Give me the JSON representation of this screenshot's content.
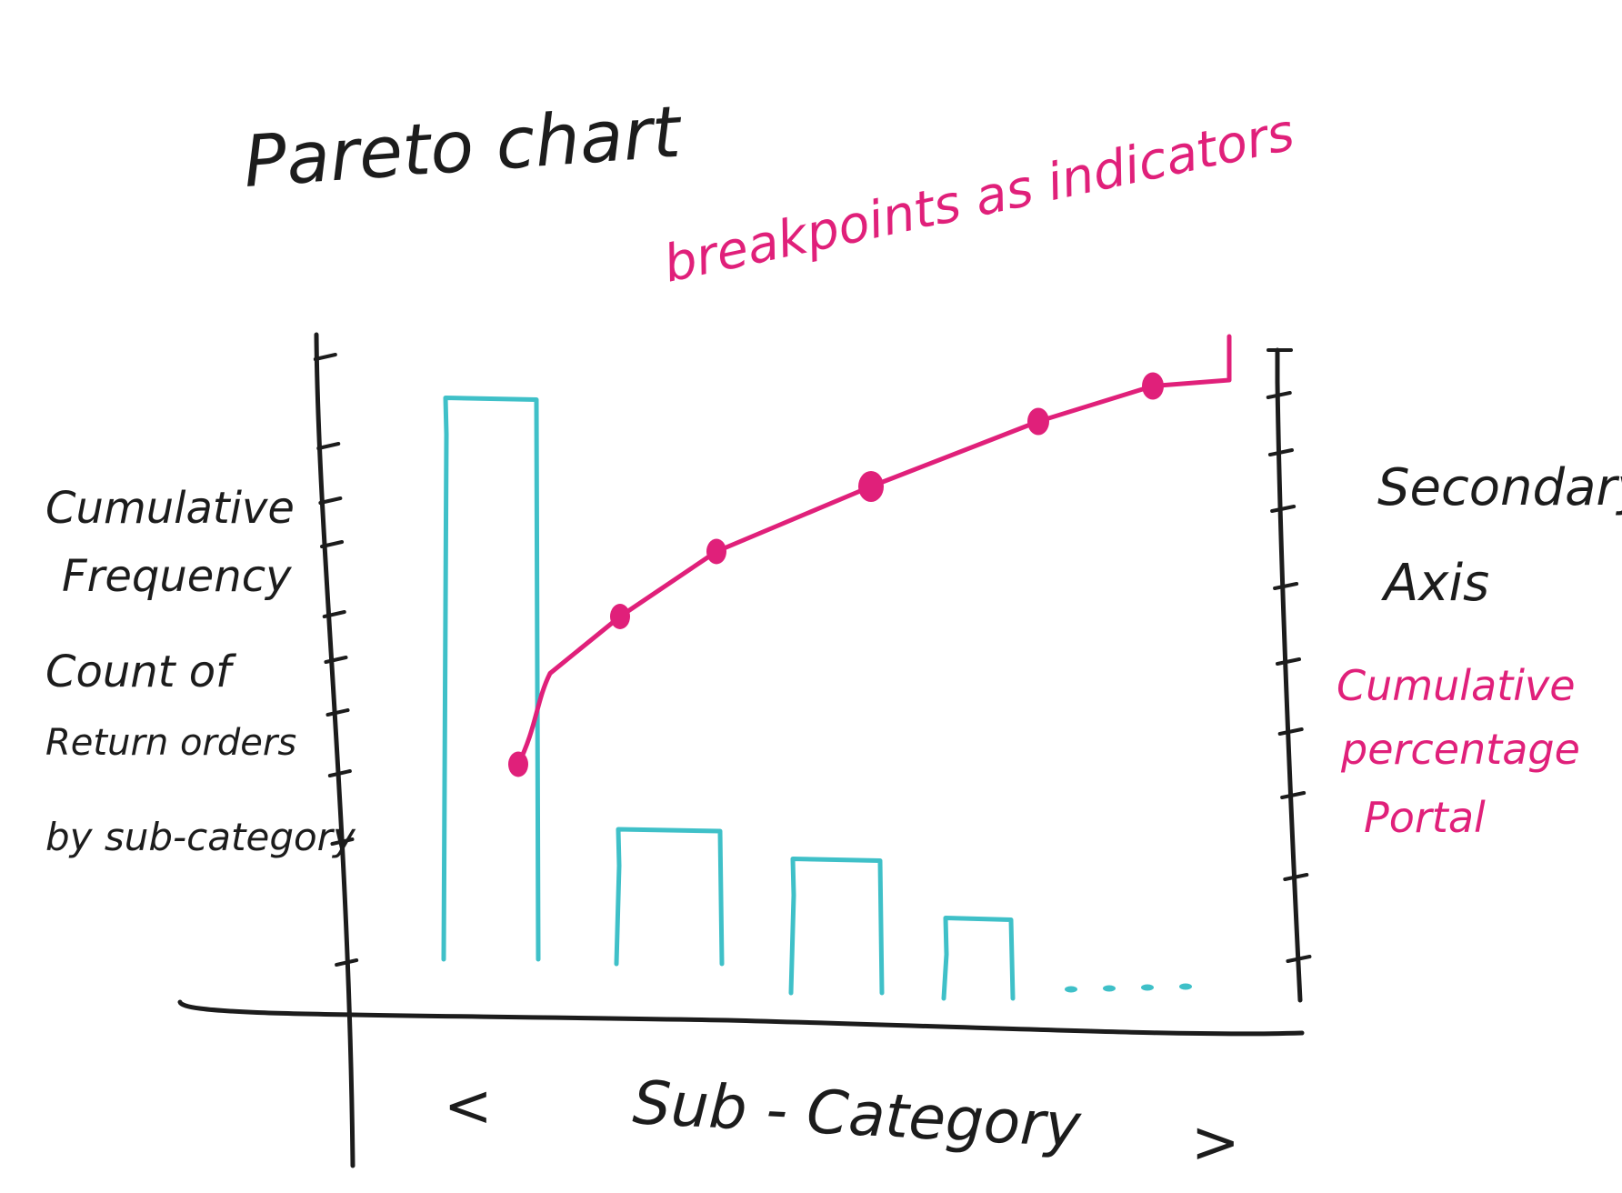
{
  "title": "Pareto chart",
  "annotation": "breakpoints as indicators",
  "left_axis_label": [
    "Cumulative",
    "Frequency",
    "Count of",
    "Return orders",
    "by sub-category"
  ],
  "right_axis_label": [
    "Secondary",
    "Axis"
  ],
  "right_axis_note": [
    "Cumulative",
    "percentage",
    "Portal"
  ],
  "x_axis": {
    "left_arrow": "<",
    "label": "Sub - Category",
    "right_arrow": ">"
  },
  "colors": {
    "ink": "#1c1c1c",
    "bars": "#3fc0c8",
    "cumulative_line": "#e0207a"
  },
  "chart_data": {
    "type": "bar",
    "title": "Pareto chart",
    "xlabel": "Sub - Category",
    "ylabel": "Cumulative Frequency Count of Return orders by sub-category",
    "secondary_ylabel": "Secondary Axis Cumulative percentage Portal",
    "bars_relative": [
      0.95,
      0.22,
      0.17,
      0.07
    ],
    "trailing_marks_count": 4,
    "cumulative_line_relative": [
      0.33,
      0.58,
      0.69,
      0.8,
      0.91,
      0.97,
      0.98
    ],
    "series": [
      {
        "values": [
          0.95,
          0.22,
          0.17,
          0.07
        ]
      }
    ]
  }
}
